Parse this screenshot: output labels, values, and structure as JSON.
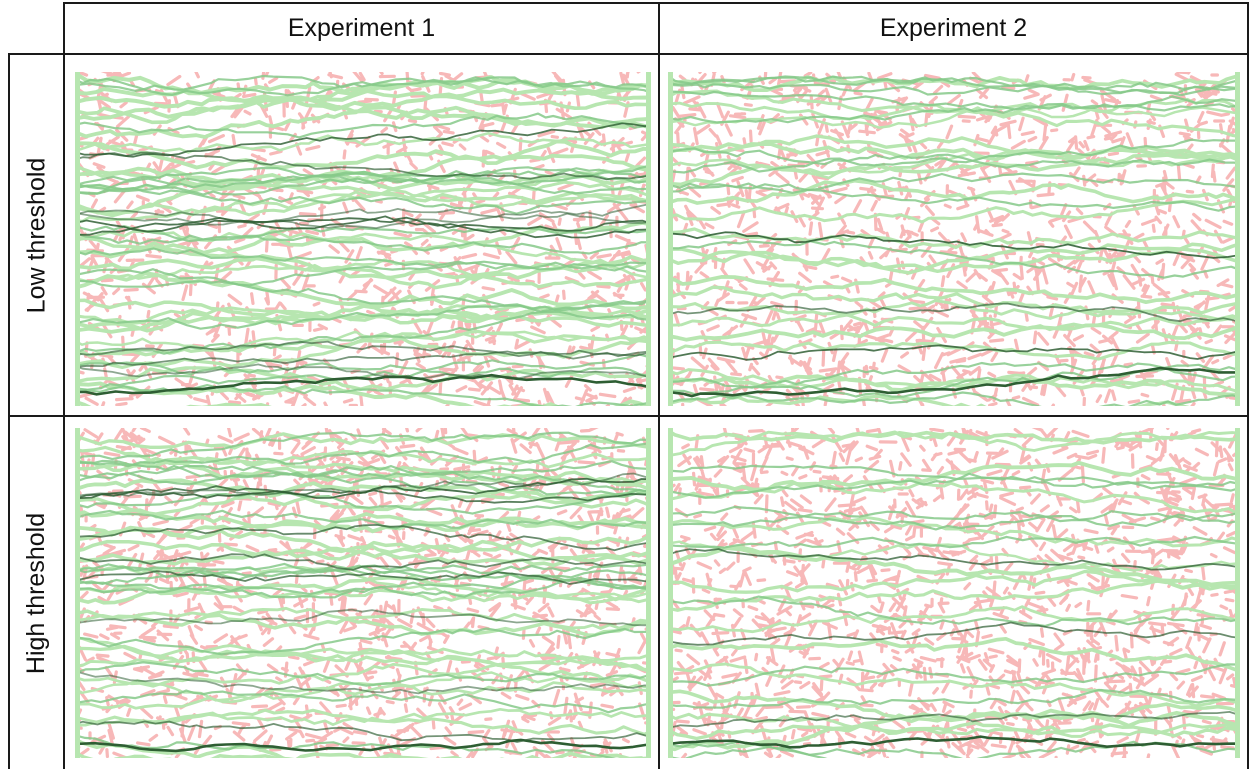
{
  "columns": [
    {
      "label": "Experiment 1"
    },
    {
      "label": "Experiment 2"
    }
  ],
  "rows": [
    {
      "label": "Low threshold"
    },
    {
      "label": "High threshold"
    }
  ],
  "colors": {
    "background_network": "#f7b8b8",
    "flow_light": "#b7e6b0",
    "flow_mid": "#86c989",
    "flow_dark": "#2e5e33",
    "grid_line": "#1a1a1a"
  },
  "panels": [
    {
      "row": 0,
      "col": 0,
      "seed": 11,
      "pink_share": 0.45,
      "green_lines": 30,
      "dark_share": 0.3
    },
    {
      "row": 0,
      "col": 1,
      "seed": 29,
      "pink_share": 0.55,
      "green_lines": 22,
      "dark_share": 0.15
    },
    {
      "row": 1,
      "col": 0,
      "seed": 47,
      "pink_share": 0.6,
      "green_lines": 26,
      "dark_share": 0.35
    },
    {
      "row": 1,
      "col": 1,
      "seed": 83,
      "pink_share": 0.7,
      "green_lines": 16,
      "dark_share": 0.18
    }
  ]
}
